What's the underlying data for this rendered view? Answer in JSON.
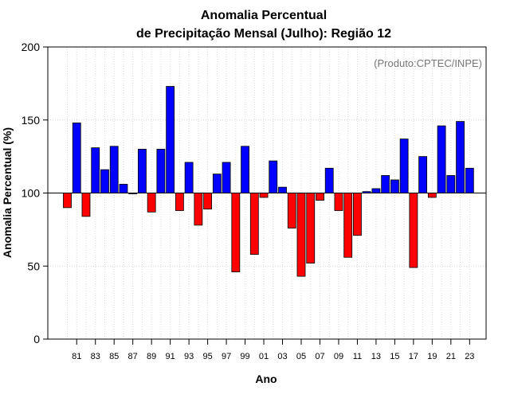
{
  "chart_data": {
    "type": "bar",
    "title_line1": "Anomalia Percentual",
    "title_line2": "de Precipitação Mensal (Julho): Região 12",
    "xlabel": "Ano",
    "ylabel": "Anomalia Percentual (%)",
    "credit": "(Produto:CPTEC/INPE)",
    "ylim": [
      0,
      200
    ],
    "yticks": [
      0,
      50,
      100,
      150,
      200
    ],
    "baseline": 100,
    "grid": true,
    "categories": [
      "80",
      "81",
      "82",
      "83",
      "84",
      "85",
      "86",
      "87",
      "88",
      "89",
      "90",
      "91",
      "92",
      "93",
      "94",
      "95",
      "96",
      "97",
      "98",
      "99",
      "00",
      "01",
      "02",
      "03",
      "04",
      "05",
      "06",
      "07",
      "08",
      "09",
      "10",
      "11",
      "12",
      "13",
      "14",
      "15",
      "16",
      "17",
      "18",
      "19",
      "20",
      "21",
      "22",
      "23"
    ],
    "values": [
      90,
      148,
      84,
      131,
      116,
      132,
      106,
      100,
      130,
      87,
      130,
      173,
      88,
      121,
      78,
      89,
      113,
      121,
      46,
      132,
      58,
      97,
      122,
      104,
      76,
      43,
      52,
      95,
      117,
      88,
      56,
      71,
      101,
      103,
      112,
      109,
      137,
      49,
      125,
      97,
      146,
      112,
      149,
      117
    ],
    "xtick_labels": [
      "81",
      "83",
      "85",
      "87",
      "89",
      "91",
      "93",
      "95",
      "97",
      "99",
      "01",
      "03",
      "05",
      "07",
      "09",
      "11",
      "13",
      "15",
      "17",
      "19",
      "21",
      "23"
    ],
    "colors": {
      "above": "#0000ff",
      "below": "#ff0000",
      "grid": "#d9d9d9",
      "axis": "#000000"
    }
  }
}
